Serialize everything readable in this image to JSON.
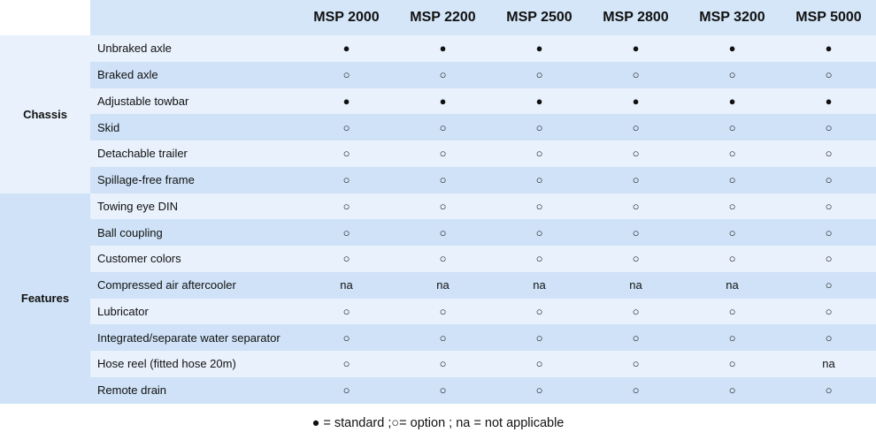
{
  "header": {
    "models": [
      "MSP 2000",
      "MSP 2200",
      "MSP 2500",
      "MSP 2800",
      "MSP 3200",
      "MSP 5000"
    ]
  },
  "groups": [
    {
      "name": "Chassis",
      "rows": [
        {
          "feature": "Unbraked axle",
          "values": [
            "●",
            "●",
            "●",
            "●",
            "●",
            "●"
          ]
        },
        {
          "feature": "Braked axle",
          "values": [
            "○",
            "○",
            "○",
            "○",
            "○",
            "○"
          ]
        },
        {
          "feature": "Adjustable towbar",
          "values": [
            "●",
            "●",
            "●",
            "●",
            "●",
            "●"
          ]
        },
        {
          "feature": "Skid",
          "values": [
            "○",
            "○",
            "○",
            "○",
            "○",
            "○"
          ]
        },
        {
          "feature": "Detachable trailer",
          "values": [
            "○",
            "○",
            "○",
            "○",
            "○",
            "○"
          ]
        },
        {
          "feature": "Spillage-free frame",
          "values": [
            "○",
            "○",
            "○",
            "○",
            "○",
            "○"
          ]
        }
      ]
    },
    {
      "name": "Features",
      "rows": [
        {
          "feature": "Towing eye DIN",
          "values": [
            "○",
            "○",
            "○",
            "○",
            "○",
            "○"
          ]
        },
        {
          "feature": "Ball coupling",
          "values": [
            "○",
            "○",
            "○",
            "○",
            "○",
            "○"
          ]
        },
        {
          "feature": "Customer colors",
          "values": [
            "○",
            "○",
            "○",
            "○",
            "○",
            "○"
          ]
        },
        {
          "feature": "Compressed air aftercooler",
          "values": [
            "na",
            "na",
            "na",
            "na",
            "na",
            "○"
          ]
        },
        {
          "feature": "Lubricator",
          "values": [
            "○",
            "○",
            "○",
            "○",
            "○",
            "○"
          ]
        },
        {
          "feature": "Integrated/separate water separator",
          "values": [
            "○",
            "○",
            "○",
            "○",
            "○",
            "○"
          ]
        },
        {
          "feature": "Hose reel (fitted hose 20m)",
          "values": [
            "○",
            "○",
            "○",
            "○",
            "○",
            "na"
          ]
        },
        {
          "feature": "Remote drain",
          "values": [
            "○",
            "○",
            "○",
            "○",
            "○",
            "○"
          ]
        }
      ]
    }
  ],
  "legend": {
    "text": "● = standard ;○= option ; na = not applicable"
  }
}
